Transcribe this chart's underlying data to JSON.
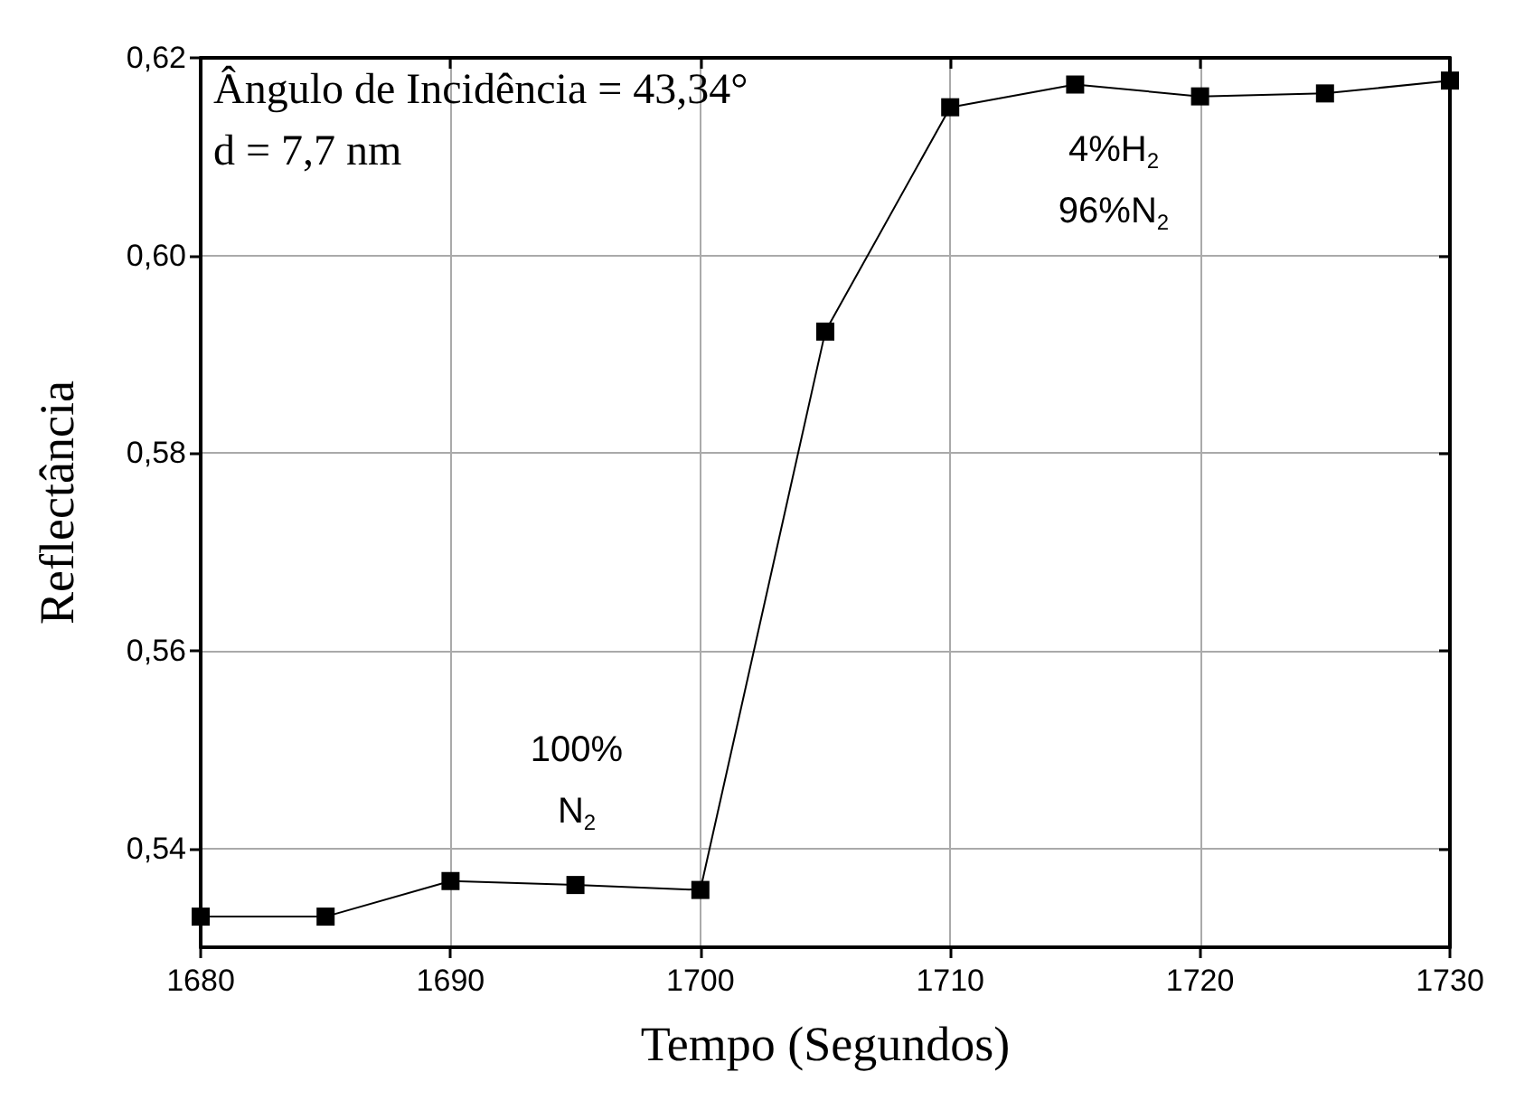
{
  "chart_data": {
    "type": "line",
    "xlabel": "Tempo (Segundos)",
    "ylabel": "Reflectância",
    "x": [
      1680,
      1685,
      1690,
      1695,
      1700,
      1705,
      1710,
      1715,
      1720,
      1725,
      1730
    ],
    "series": [
      {
        "color": "#000000",
        "values": [
          0.5331,
          0.5331,
          0.5367,
          0.5363,
          0.5358,
          0.5923,
          0.615,
          0.6173,
          0.6161,
          0.6164,
          0.6177
        ]
      }
    ],
    "xlim": [
      1680,
      1730
    ],
    "xticks": [
      1680,
      1690,
      1700,
      1710,
      1720,
      1730
    ],
    "ylim": [
      0.53,
      0.62
    ],
    "yticks": [
      {
        "value": 0.54,
        "label": "0,54"
      },
      {
        "value": 0.56,
        "label": "0,56"
      },
      {
        "value": 0.58,
        "label": "0,58"
      },
      {
        "value": 0.6,
        "label": "0,60"
      },
      {
        "value": 0.62,
        "label": "0,62"
      }
    ],
    "grid": true,
    "marker": "square",
    "line_style": "solid",
    "annotations": [
      "Ângulo de Incidência = 43,34°",
      "d = 7,7 nm",
      "100%\nN$_{2}$",
      "4%H$_{2}$\n96%N$_{2}$"
    ]
  }
}
